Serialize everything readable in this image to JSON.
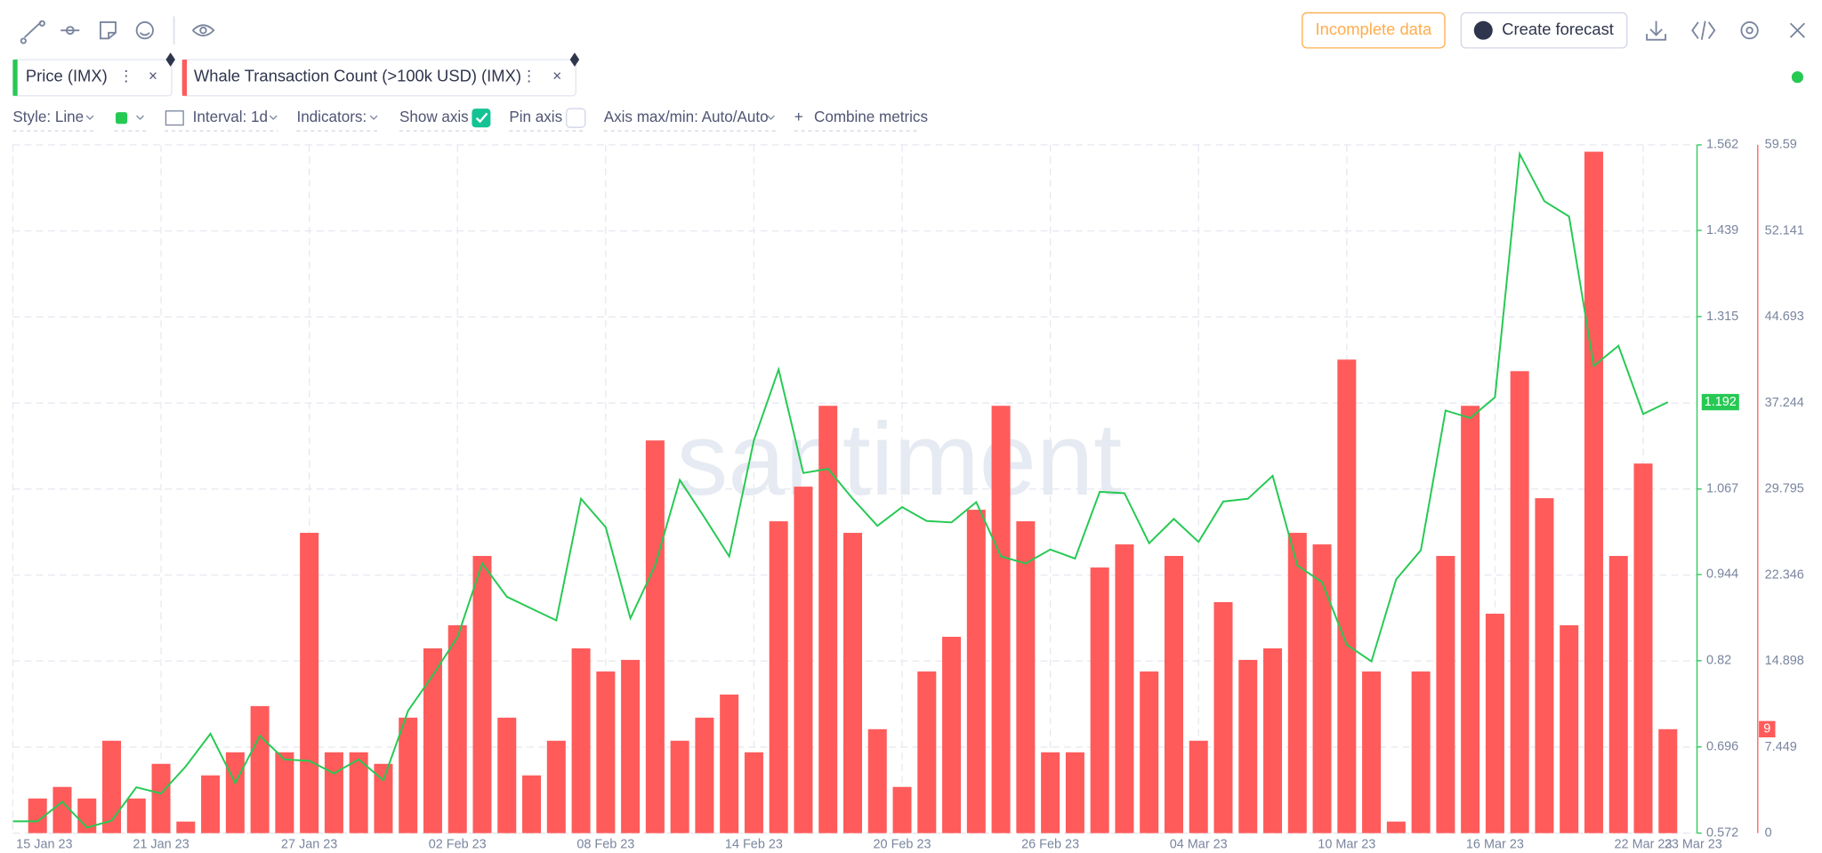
{
  "toolbar": {
    "incomplete": "Incomplete data",
    "forecast": "Create forecast"
  },
  "settings": {
    "style": "Style: Line",
    "interval": "Interval: 1d",
    "indicators": "Indicators:",
    "show_axis": "Show axis",
    "pin_axis": "Pin axis",
    "axis_minmax": "Axis max/min: Auto/Auto",
    "combine": "Combine metrics"
  },
  "watermark": "santiment",
  "chart_data": {
    "type": "line",
    "categories": [
      "15 Jan 23",
      null,
      null,
      null,
      null,
      null,
      "21 Jan 23",
      null,
      null,
      null,
      null,
      null,
      "27 Jan 23",
      null,
      null,
      null,
      null,
      null,
      "02 Feb 23",
      null,
      null,
      null,
      null,
      null,
      "08 Feb 23",
      null,
      null,
      null,
      null,
      null,
      "14 Feb 23",
      null,
      null,
      null,
      null,
      null,
      "20 Feb 23",
      null,
      null,
      null,
      null,
      null,
      "26 Feb 23",
      null,
      null,
      null,
      null,
      null,
      "04 Mar 23",
      null,
      null,
      null,
      null,
      null,
      "10 Mar 23",
      null,
      null,
      null,
      null,
      null,
      "16 Mar 23",
      null,
      null,
      null,
      null,
      null,
      "22 Mar 23",
      "23 Mar 23"
    ],
    "series": [
      {
        "name": "Price (IMX)",
        "type": "line",
        "color": "#26c953",
        "values": [
          0.589,
          0.589,
          0.617,
          0.58,
          0.59,
          0.638,
          0.629,
          0.668,
          0.715,
          0.644,
          0.712,
          0.678,
          0.676,
          0.658,
          0.678,
          0.648,
          0.748,
          0.799,
          0.854,
          0.96,
          0.912,
          0.895,
          0.878,
          1.053,
          1.012,
          0.881,
          0.957,
          1.08,
          1.026,
          0.97,
          1.137,
          1.239,
          1.09,
          1.096,
          1.053,
          1.014,
          1.041,
          1.021,
          1.019,
          1.048,
          0.97,
          0.96,
          0.98,
          0.967,
          1.063,
          1.061,
          0.989,
          1.024,
          0.991,
          1.049,
          1.053,
          1.086,
          0.957,
          0.933,
          0.843,
          0.819,
          0.937,
          0.979,
          1.18,
          1.169,
          1.199,
          1.549,
          1.481,
          1.459,
          1.244,
          1.273,
          1.175,
          1.192
        ]
      },
      {
        "name": "Whale Transaction Count (>100k USD) (IMX)",
        "type": "bar",
        "axis": "y2",
        "color": "#ff5b5b",
        "values": [
          null,
          3,
          4,
          3,
          8,
          3,
          6,
          1,
          5,
          7,
          11,
          7,
          26,
          7,
          7,
          6,
          10,
          16,
          18,
          24,
          10,
          5,
          8,
          16,
          14,
          15,
          34,
          8,
          10,
          12,
          7,
          27,
          30,
          37,
          26,
          9,
          4,
          14,
          17,
          28,
          37,
          27,
          7,
          7,
          23,
          25,
          14,
          24,
          8,
          20,
          15,
          16,
          26,
          25,
          41,
          14,
          1,
          14,
          24,
          37,
          19,
          40,
          29,
          18,
          59,
          24,
          32,
          9
        ]
      }
    ],
    "ylim": [
      0.572,
      1.562
    ],
    "yticks": [
      0.572,
      0.696,
      0.82,
      0.944,
      1.067,
      1.315,
      1.439,
      1.562
    ],
    "y2lim": [
      0,
      59.59
    ],
    "y2ticks": [
      0,
      7.449,
      14.898,
      22.346,
      29.795,
      37.244,
      44.693,
      52.141,
      59.59
    ],
    "grid": true
  }
}
